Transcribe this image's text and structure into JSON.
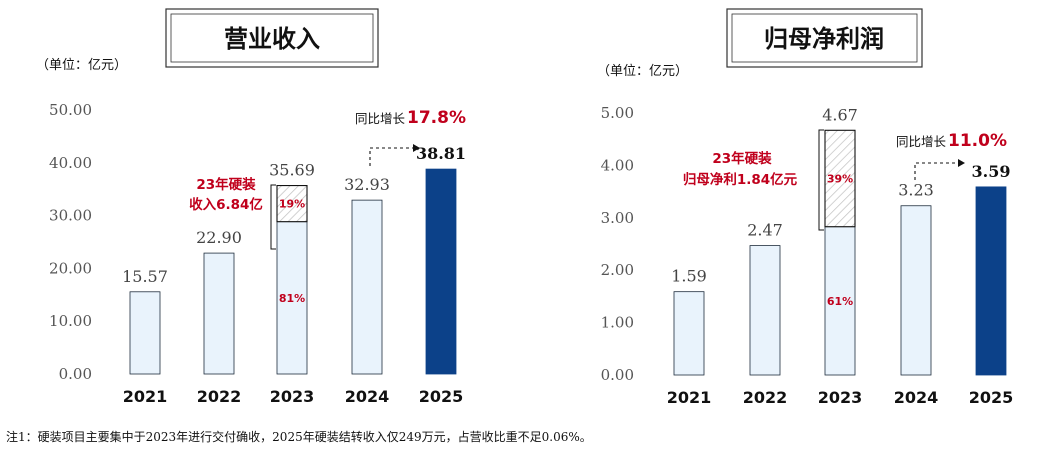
{
  "colors": {
    "bar_light": "#e9f3fc",
    "bar_light_stroke": "#1f2d3d",
    "bar_dark": "#0c4189",
    "highlight": "#c0001c",
    "hatch": "#bdbdbd",
    "axis_text": "#555555"
  },
  "charts": [
    {
      "title": "营业收入",
      "unit": "（单位：亿元）",
      "ticks": [
        "0.00",
        "10.00",
        "20.00",
        "30.00",
        "40.00",
        "50.00"
      ],
      "callout_text": [
        "23年硬装",
        "收入6.84亿"
      ],
      "growth_prefix": "同比增长",
      "growth_value": "17.8%"
    },
    {
      "title": "归母净利润",
      "unit": "（单位：亿元）",
      "ticks": [
        "0.00",
        "1.00",
        "2.00",
        "3.00",
        "4.00",
        "5.00"
      ],
      "callout_text": [
        "23年硬装",
        "归母净利1.84亿元"
      ],
      "growth_prefix": "同比增长",
      "growth_value": "11.0%"
    }
  ],
  "chart_data": [
    {
      "type": "bar",
      "title": "营业收入",
      "ylabel": "（单位：亿元）",
      "categories": [
        "2021",
        "2022",
        "2023",
        "2024",
        "2025"
      ],
      "values": [
        15.57,
        22.9,
        35.69,
        32.93,
        38.81
      ],
      "value_labels": [
        "15.57",
        "22.90",
        "35.69",
        "32.93",
        "38.81"
      ],
      "ylim": [
        0,
        50
      ],
      "split_2023": {
        "upper_label": "19%",
        "lower_label": "81%",
        "upper_value": 6.84
      },
      "grid": false
    },
    {
      "type": "bar",
      "title": "归母净利润",
      "ylabel": "（单位：亿元）",
      "categories": [
        "2021",
        "2022",
        "2023",
        "2024",
        "2025"
      ],
      "values": [
        1.59,
        2.47,
        4.67,
        3.23,
        3.59
      ],
      "value_labels": [
        "1.59",
        "2.47",
        "4.67",
        "3.23",
        "3.59"
      ],
      "ylim": [
        0,
        5
      ],
      "split_2023": {
        "upper_label": "39%",
        "lower_label": "61%",
        "upper_value": 1.84
      },
      "grid": false
    }
  ],
  "footnote": "注1：硬装项目主要集中于2023年进行交付确收，2025年硬装结转收入仅249万元，占营收比重不足0.06%。"
}
